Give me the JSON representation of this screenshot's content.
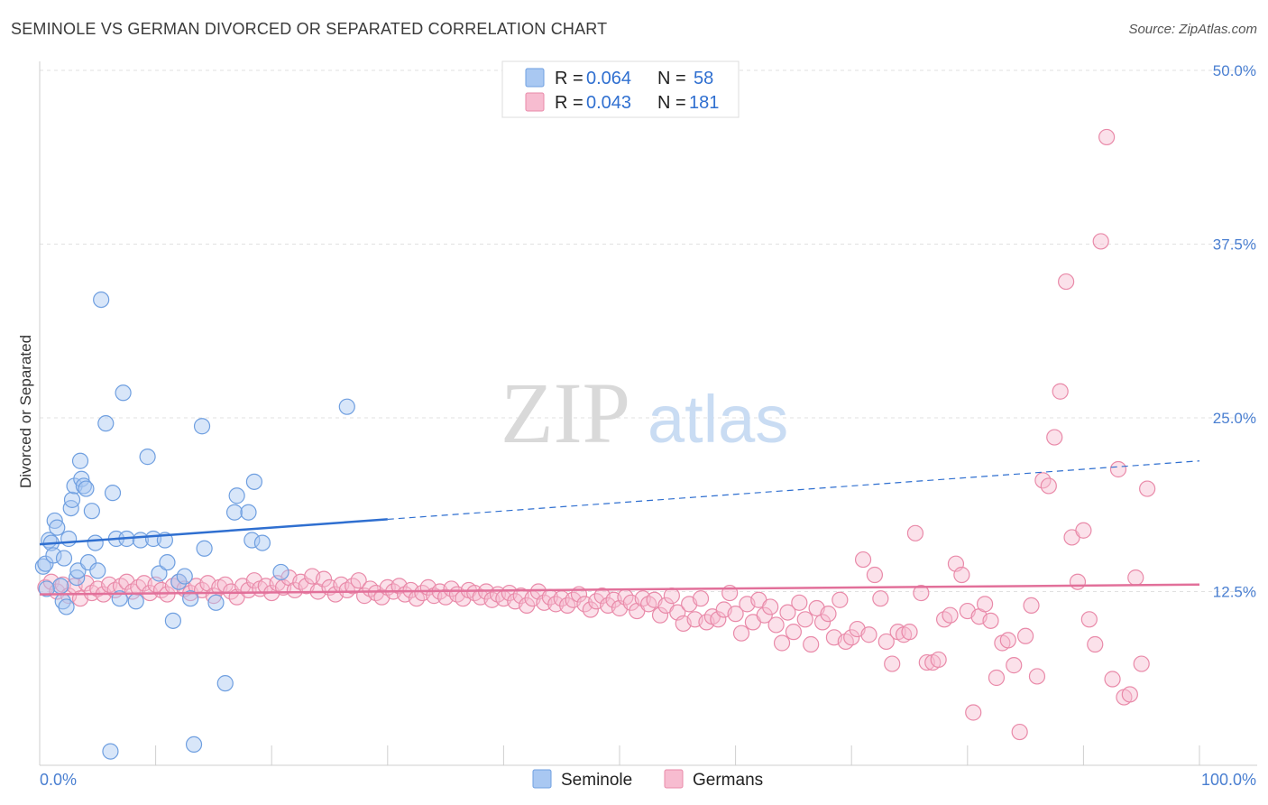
{
  "title": "SEMINOLE VS GERMAN DIVORCED OR SEPARATED CORRELATION CHART",
  "source": "Source: ZipAtlas.com",
  "watermark": {
    "zip": "ZIP",
    "atlas": "atlas"
  },
  "legend_top": [
    {
      "r_label": "R =",
      "r_value": "0.064",
      "n_label": "N =",
      "n_value": "58",
      "color": "#a9c8f2",
      "stroke": "#6f9fe0"
    },
    {
      "r_label": "R =",
      "r_value": "0.043",
      "n_label": "N =",
      "n_value": "181",
      "color": "#f7bcd0",
      "stroke": "#e98aa9"
    }
  ],
  "legend_bottom": [
    {
      "label": "Seminole",
      "color": "#a9c8f2",
      "stroke": "#6f9fe0"
    },
    {
      "label": "Germans",
      "color": "#f7bcd0",
      "stroke": "#e98aa9"
    }
  ],
  "chart_data": {
    "type": "scatter",
    "title": "SEMINOLE VS GERMAN DIVORCED OR SEPARATED CORRELATION CHART",
    "xlabel": "",
    "ylabel": "Divorced or Separated",
    "xlim": [
      0,
      100
    ],
    "ylim": [
      0,
      50
    ],
    "x_tick_labels": {
      "left": "0.0%",
      "right": "100.0%"
    },
    "y_ticks": [
      {
        "value": 12.5,
        "label": "12.5%"
      },
      {
        "value": 25.0,
        "label": "25.0%"
      },
      {
        "value": 37.5,
        "label": "37.5%"
      },
      {
        "value": 50.0,
        "label": "50.0%"
      }
    ],
    "grid": "horizontal dashed",
    "legend_position": "top-center",
    "series": [
      {
        "name": "Seminole",
        "color": "#6f9fe0",
        "fill": "#a9c8f2",
        "trend": {
          "x0": 0,
          "y0": 15.9,
          "x1": 30,
          "y1": 17.7,
          "x_dashed_end": 100,
          "y_dashed_end": 21.9,
          "color": "#2f6fd0"
        },
        "points": [
          [
            0.3,
            14.3
          ],
          [
            0.5,
            14.5
          ],
          [
            0.8,
            16.2
          ],
          [
            1.0,
            16.0
          ],
          [
            1.2,
            15.1
          ],
          [
            1.3,
            17.6
          ],
          [
            1.5,
            17.1
          ],
          [
            1.8,
            12.9
          ],
          [
            2.0,
            11.8
          ],
          [
            2.1,
            14.9
          ],
          [
            2.3,
            11.4
          ],
          [
            2.5,
            16.3
          ],
          [
            2.7,
            18.5
          ],
          [
            2.8,
            19.1
          ],
          [
            3.0,
            20.1
          ],
          [
            3.2,
            13.5
          ],
          [
            3.3,
            14.0
          ],
          [
            3.5,
            21.9
          ],
          [
            3.6,
            20.6
          ],
          [
            3.8,
            20.1
          ],
          [
            4.0,
            19.9
          ],
          [
            4.2,
            14.6
          ],
          [
            4.5,
            18.3
          ],
          [
            4.8,
            16.0
          ],
          [
            5.0,
            14.0
          ],
          [
            5.3,
            33.5
          ],
          [
            5.7,
            24.6
          ],
          [
            6.1,
            1.0
          ],
          [
            6.3,
            19.6
          ],
          [
            6.6,
            16.3
          ],
          [
            6.9,
            12.0
          ],
          [
            7.2,
            26.8
          ],
          [
            7.5,
            16.3
          ],
          [
            8.3,
            11.8
          ],
          [
            8.7,
            16.2
          ],
          [
            9.3,
            22.2
          ],
          [
            9.8,
            16.3
          ],
          [
            10.3,
            13.8
          ],
          [
            10.8,
            16.2
          ],
          [
            11.0,
            14.6
          ],
          [
            11.5,
            10.4
          ],
          [
            12.0,
            13.2
          ],
          [
            12.5,
            13.6
          ],
          [
            13.0,
            12.0
          ],
          [
            13.3,
            1.5
          ],
          [
            14.0,
            24.4
          ],
          [
            14.2,
            15.6
          ],
          [
            15.2,
            11.7
          ],
          [
            16.0,
            5.9
          ],
          [
            16.8,
            18.2
          ],
          [
            17.0,
            19.4
          ],
          [
            18.0,
            18.2
          ],
          [
            18.3,
            16.2
          ],
          [
            18.5,
            20.4
          ],
          [
            19.2,
            16.0
          ],
          [
            20.8,
            13.9
          ],
          [
            26.5,
            25.8
          ],
          [
            0.6,
            12.7
          ]
        ]
      },
      {
        "name": "Germans",
        "color": "#e98aa9",
        "fill": "#f7bcd0",
        "trend": {
          "x0": 0,
          "y0": 12.3,
          "x1": 100,
          "y1": 13.0,
          "color": "#e2709a"
        },
        "points": [
          [
            0.5,
            12.8
          ],
          [
            1.0,
            13.2
          ],
          [
            1.5,
            12.5
          ],
          [
            2.0,
            13.0
          ],
          [
            2.5,
            12.2
          ],
          [
            3.0,
            12.9
          ],
          [
            3.5,
            12.0
          ],
          [
            4.0,
            13.1
          ],
          [
            4.5,
            12.4
          ],
          [
            5.0,
            12.7
          ],
          [
            5.5,
            12.3
          ],
          [
            6.0,
            13.0
          ],
          [
            6.5,
            12.6
          ],
          [
            7.0,
            12.9
          ],
          [
            7.5,
            13.2
          ],
          [
            8.0,
            12.5
          ],
          [
            8.5,
            12.8
          ],
          [
            9.0,
            13.1
          ],
          [
            9.5,
            12.4
          ],
          [
            10.0,
            13.0
          ],
          [
            10.5,
            12.6
          ],
          [
            11.0,
            12.3
          ],
          [
            11.5,
            12.9
          ],
          [
            12.0,
            13.2
          ],
          [
            12.5,
            12.7
          ],
          [
            13.0,
            12.4
          ],
          [
            13.5,
            12.9
          ],
          [
            14.0,
            12.6
          ],
          [
            14.5,
            13.1
          ],
          [
            15.0,
            12.2
          ],
          [
            15.5,
            12.8
          ],
          [
            16.0,
            13.0
          ],
          [
            16.5,
            12.5
          ],
          [
            17.0,
            12.1
          ],
          [
            17.5,
            12.9
          ],
          [
            18.0,
            12.6
          ],
          [
            18.5,
            13.3
          ],
          [
            19.0,
            12.7
          ],
          [
            19.5,
            12.9
          ],
          [
            20.0,
            12.4
          ],
          [
            20.5,
            13.1
          ],
          [
            21.0,
            12.8
          ],
          [
            21.5,
            13.5
          ],
          [
            22.0,
            12.6
          ],
          [
            22.5,
            13.2
          ],
          [
            23.0,
            12.9
          ],
          [
            23.5,
            13.6
          ],
          [
            24.0,
            12.5
          ],
          [
            24.5,
            13.4
          ],
          [
            25.0,
            12.8
          ],
          [
            25.5,
            12.3
          ],
          [
            26.0,
            13.0
          ],
          [
            26.5,
            12.6
          ],
          [
            27.0,
            12.9
          ],
          [
            27.5,
            13.3
          ],
          [
            28.0,
            12.2
          ],
          [
            28.5,
            12.7
          ],
          [
            29.0,
            12.4
          ],
          [
            29.5,
            12.1
          ],
          [
            30.0,
            12.8
          ],
          [
            30.5,
            12.5
          ],
          [
            31.0,
            12.9
          ],
          [
            31.5,
            12.3
          ],
          [
            32.0,
            12.6
          ],
          [
            32.5,
            12.0
          ],
          [
            33.0,
            12.4
          ],
          [
            33.5,
            12.8
          ],
          [
            34.0,
            12.2
          ],
          [
            34.5,
            12.5
          ],
          [
            35.0,
            12.1
          ],
          [
            35.5,
            12.7
          ],
          [
            36.0,
            12.3
          ],
          [
            36.5,
            12.0
          ],
          [
            37.0,
            12.6
          ],
          [
            37.5,
            12.4
          ],
          [
            38.0,
            12.1
          ],
          [
            38.5,
            12.5
          ],
          [
            39.0,
            11.9
          ],
          [
            39.5,
            12.3
          ],
          [
            40.0,
            12.0
          ],
          [
            40.5,
            12.4
          ],
          [
            41.0,
            11.8
          ],
          [
            41.5,
            12.2
          ],
          [
            42.0,
            11.5
          ],
          [
            42.5,
            12.0
          ],
          [
            43.0,
            12.5
          ],
          [
            43.5,
            11.7
          ],
          [
            44.0,
            12.1
          ],
          [
            44.5,
            11.6
          ],
          [
            45.0,
            12.0
          ],
          [
            45.5,
            11.5
          ],
          [
            46.0,
            11.9
          ],
          [
            46.5,
            12.3
          ],
          [
            47.0,
            11.6
          ],
          [
            47.5,
            11.2
          ],
          [
            48.0,
            11.8
          ],
          [
            48.5,
            12.2
          ],
          [
            49.0,
            11.5
          ],
          [
            49.5,
            11.9
          ],
          [
            50.0,
            11.3
          ],
          [
            50.5,
            12.1
          ],
          [
            51.0,
            11.7
          ],
          [
            51.5,
            11.1
          ],
          [
            52.0,
            12.0
          ],
          [
            52.5,
            11.6
          ],
          [
            53.0,
            11.9
          ],
          [
            53.5,
            10.8
          ],
          [
            54.0,
            11.5
          ],
          [
            54.5,
            12.2
          ],
          [
            55.0,
            11.0
          ],
          [
            55.5,
            10.2
          ],
          [
            56.0,
            11.6
          ],
          [
            56.5,
            10.5
          ],
          [
            57.0,
            12.0
          ],
          [
            57.5,
            10.3
          ],
          [
            58.0,
            10.7
          ],
          [
            58.5,
            10.5
          ],
          [
            59.0,
            11.2
          ],
          [
            59.5,
            12.4
          ],
          [
            60.0,
            10.9
          ],
          [
            60.5,
            9.5
          ],
          [
            61.0,
            11.6
          ],
          [
            61.5,
            10.3
          ],
          [
            62.0,
            11.9
          ],
          [
            62.5,
            10.8
          ],
          [
            63.0,
            11.4
          ],
          [
            63.5,
            10.1
          ],
          [
            64.0,
            8.8
          ],
          [
            64.5,
            11.0
          ],
          [
            65.0,
            9.6
          ],
          [
            65.5,
            11.7
          ],
          [
            66.0,
            10.5
          ],
          [
            66.5,
            8.7
          ],
          [
            67.0,
            11.3
          ],
          [
            67.5,
            10.3
          ],
          [
            68.0,
            10.9
          ],
          [
            68.5,
            9.2
          ],
          [
            69.0,
            11.9
          ],
          [
            69.5,
            8.9
          ],
          [
            70.0,
            9.2
          ],
          [
            70.5,
            9.8
          ],
          [
            71.0,
            14.8
          ],
          [
            71.5,
            9.4
          ],
          [
            72.0,
            13.7
          ],
          [
            72.5,
            12.0
          ],
          [
            73.0,
            8.9
          ],
          [
            73.5,
            7.3
          ],
          [
            74.0,
            9.6
          ],
          [
            74.5,
            9.4
          ],
          [
            75.0,
            9.6
          ],
          [
            75.5,
            16.7
          ],
          [
            76.0,
            12.4
          ],
          [
            76.5,
            7.4
          ],
          [
            77.0,
            7.4
          ],
          [
            77.5,
            7.6
          ],
          [
            78.0,
            10.5
          ],
          [
            78.5,
            10.8
          ],
          [
            79.0,
            14.5
          ],
          [
            79.5,
            13.7
          ],
          [
            80.0,
            11.1
          ],
          [
            80.5,
            3.8
          ],
          [
            81.0,
            10.7
          ],
          [
            81.5,
            11.6
          ],
          [
            82.0,
            10.4
          ],
          [
            82.5,
            6.3
          ],
          [
            83.0,
            8.8
          ],
          [
            83.5,
            9.0
          ],
          [
            84.0,
            7.2
          ],
          [
            84.5,
            2.4
          ],
          [
            85.0,
            9.3
          ],
          [
            85.5,
            11.5
          ],
          [
            86.0,
            6.4
          ],
          [
            86.5,
            20.5
          ],
          [
            87.0,
            20.1
          ],
          [
            87.5,
            23.6
          ],
          [
            88.0,
            26.9
          ],
          [
            88.5,
            34.8
          ],
          [
            89.0,
            16.4
          ],
          [
            89.5,
            13.2
          ],
          [
            90.0,
            16.9
          ],
          [
            90.5,
            10.5
          ],
          [
            91.0,
            8.7
          ],
          [
            91.5,
            37.7
          ],
          [
            92.0,
            45.2
          ],
          [
            92.5,
            6.2
          ],
          [
            93.0,
            21.3
          ],
          [
            93.5,
            4.9
          ],
          [
            94.0,
            5.1
          ],
          [
            94.5,
            13.5
          ],
          [
            95.0,
            7.3
          ],
          [
            95.5,
            19.9
          ]
        ]
      }
    ]
  }
}
